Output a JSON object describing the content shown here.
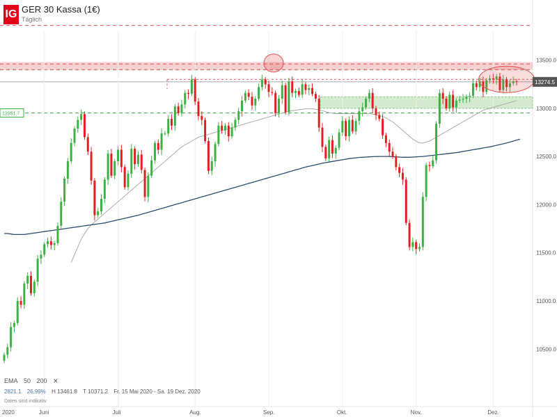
{
  "header": {
    "logo": "IG",
    "title": "GER 30 Kassa (1€)",
    "subtitle": "Täglich"
  },
  "indicator_legend": {
    "name": "EMA",
    "period_1": "50",
    "period_2": "200",
    "close_glyph": "✕"
  },
  "stats": {
    "value_1": "2821.1",
    "value_2": "26.99%",
    "high": "H 13461.8",
    "low": "T 10371.2",
    "range": "Fr. 15 Mai 2020 - Sa. 19 Dez. 2020"
  },
  "disclaimer": "Daten sind indikativ",
  "price_tags": {
    "last": "13274.5",
    "support": "12951.7"
  },
  "colors": {
    "up": "#3cb043",
    "down": "#e02020",
    "ema50": "#aaaaaa",
    "ema200": "#2c4a6e",
    "resistance_zone": "#f5c6c6",
    "support_zone": "#cfe8c9",
    "brand": "#e2001a"
  },
  "chart_data": {
    "type": "candlestick",
    "ylim": [
      10300,
      13800
    ],
    "y_ticks": [
      10500,
      11000,
      11500,
      12000,
      12500,
      13000,
      13500
    ],
    "y_tick_labels": [
      "10500.0",
      "11000.0",
      "11500.0",
      "12000.0",
      "12500.0",
      "13000.0",
      "13500.0"
    ],
    "x_tick_labels": [
      "2020",
      "Juni",
      "Juli",
      "Aug.",
      "Sep.",
      "Okt.",
      "Nov.",
      "Dez."
    ],
    "month_start_index": [
      0,
      12,
      34,
      57,
      79,
      101,
      123,
      146
    ],
    "ohlc_close": [
      10440,
      10520,
      10730,
      10770,
      11000,
      10960,
      11180,
      11260,
      11080,
      11200,
      11440,
      11480,
      11590,
      11620,
      11580,
      11600,
      11780,
      12030,
      12270,
      12450,
      12640,
      12790,
      12880,
      12940,
      12700,
      12550,
      12250,
      11890,
      11930,
      12060,
      12260,
      12530,
      12300,
      12450,
      12570,
      12390,
      12180,
      12320,
      12580,
      12420,
      12520,
      12360,
      12080,
      12300,
      12460,
      12640,
      12570,
      12740,
      12740,
      12890,
      12820,
      13020,
      12950,
      13040,
      13160,
      13150,
      13300,
      13070,
      12920,
      12880,
      12660,
      12350,
      12450,
      12630,
      12820,
      12770,
      12820,
      12710,
      12800,
      12880,
      12970,
      13080,
      13160,
      13120,
      13030,
      13100,
      13220,
      13300,
      13250,
      13170,
      13160,
      12950,
      13100,
      13240,
      12960,
      13280,
      13160,
      13180,
      13140,
      13250,
      13190,
      13210,
      13150,
      13100,
      12800,
      12600,
      12480,
      12670,
      12530,
      12590,
      12750,
      12870,
      12710,
      12880,
      12760,
      12870,
      12970,
      13010,
      13100,
      13160,
      13000,
      12930,
      12890,
      12720,
      12640,
      12550,
      12500,
      12390,
      12330,
      12260,
      11810,
      11560,
      11610,
      11540,
      11560,
      12080,
      12410,
      12400,
      12460,
      12840,
      13160,
      13100,
      13000,
      13140,
      13010,
      13080,
      13090,
      13100,
      13120,
      13130,
      13260,
      13220,
      13280,
      13170,
      13290,
      13310,
      13300,
      13330,
      13190,
      13300,
      13220,
      13260,
      13280,
      13274.5
    ],
    "ema": [
      {
        "name": "50",
        "values": [
          null,
          null,
          null,
          null,
          null,
          null,
          null,
          null,
          null,
          null,
          null,
          null,
          null,
          null,
          null,
          null,
          null,
          null,
          null,
          null,
          11400,
          11480,
          11560,
          11640,
          11700,
          11750,
          11790,
          11820,
          11850,
          11880,
          11910,
          11940,
          11970,
          12000,
          12030,
          12060,
          12090,
          12120,
          12150,
          12180,
          12210,
          12240,
          12270,
          12300,
          12330,
          12360,
          12390,
          12420,
          12450,
          12480,
          12510,
          12540,
          12570,
          12600,
          12620,
          12640,
          12660,
          12680,
          12700,
          12710,
          12720,
          12730,
          12740,
          12750,
          12760,
          12770,
          12780,
          12790,
          12800,
          12810,
          12820,
          12830,
          12840,
          12850,
          12860,
          12870,
          12880,
          12890,
          12900,
          12910,
          12920,
          12930,
          12940,
          12950,
          12960,
          12970,
          12975,
          12980,
          12985,
          12990,
          12995,
          12995,
          12995,
          12990,
          12985,
          12975,
          12965,
          12955,
          12950,
          12945,
          12945,
          12945,
          12945,
          12945,
          12945,
          12945,
          12945,
          12945,
          12945,
          12945,
          12940,
          12935,
          12925,
          12915,
          12900,
          12880,
          12860,
          12830,
          12800,
          12770,
          12740,
          12710,
          12680,
          12660,
          12640,
          12640,
          12650,
          12660,
          12680,
          12700,
          12720,
          12740,
          12760,
          12780,
          12800,
          12820,
          12840,
          12860,
          12880,
          12900,
          12920,
          12940,
          12960,
          12980,
          12990,
          13000,
          13010,
          13020,
          13030,
          13040,
          13050,
          13060,
          13070,
          13080
        ]
      },
      {
        "name": "200",
        "values": [
          11700,
          11700,
          11695,
          11690,
          11690,
          11690,
          11690,
          11695,
          11700,
          11705,
          11710,
          11715,
          11720,
          11725,
          11730,
          11735,
          11740,
          11745,
          11750,
          11755,
          11760,
          11765,
          11770,
          11775,
          11780,
          11785,
          11790,
          11795,
          11800,
          11805,
          11810,
          11818,
          11826,
          11834,
          11842,
          11850,
          11858,
          11866,
          11874,
          11882,
          11890,
          11900,
          11910,
          11920,
          11930,
          11940,
          11950,
          11960,
          11970,
          11980,
          11990,
          12000,
          12010,
          12020,
          12030,
          12040,
          12050,
          12060,
          12070,
          12080,
          12090,
          12100,
          12110,
          12120,
          12130,
          12140,
          12150,
          12160,
          12170,
          12180,
          12190,
          12200,
          12210,
          12220,
          12230,
          12240,
          12250,
          12260,
          12270,
          12280,
          12290,
          12300,
          12310,
          12320,
          12330,
          12340,
          12350,
          12360,
          12370,
          12380,
          12390,
          12398,
          12406,
          12414,
          12422,
          12430,
          12436,
          12442,
          12448,
          12454,
          12460,
          12466,
          12472,
          12478,
          12482,
          12486,
          12490,
          12492,
          12494,
          12496,
          12498,
          12500,
          12500,
          12500,
          12500,
          12500,
          12498,
          12496,
          12494,
          12492,
          12492,
          12492,
          12494,
          12496,
          12498,
          12500,
          12504,
          12508,
          12512,
          12516,
          12520,
          12524,
          12528,
          12532,
          12536,
          12540,
          12546,
          12552,
          12558,
          12564,
          12570,
          12576,
          12582,
          12588,
          12594,
          12600,
          12608,
          12616,
          12624,
          12632,
          12640,
          12650,
          12660,
          12670,
          12680
        ]
      }
    ],
    "resistance_zone": [
      13400,
      13480
    ],
    "support_zone": [
      13000,
      13120
    ],
    "levels": [
      13860,
      13460,
      13400,
      13300,
      12951.7
    ],
    "last_price": 13274.5,
    "support_label": 12951.7
  }
}
